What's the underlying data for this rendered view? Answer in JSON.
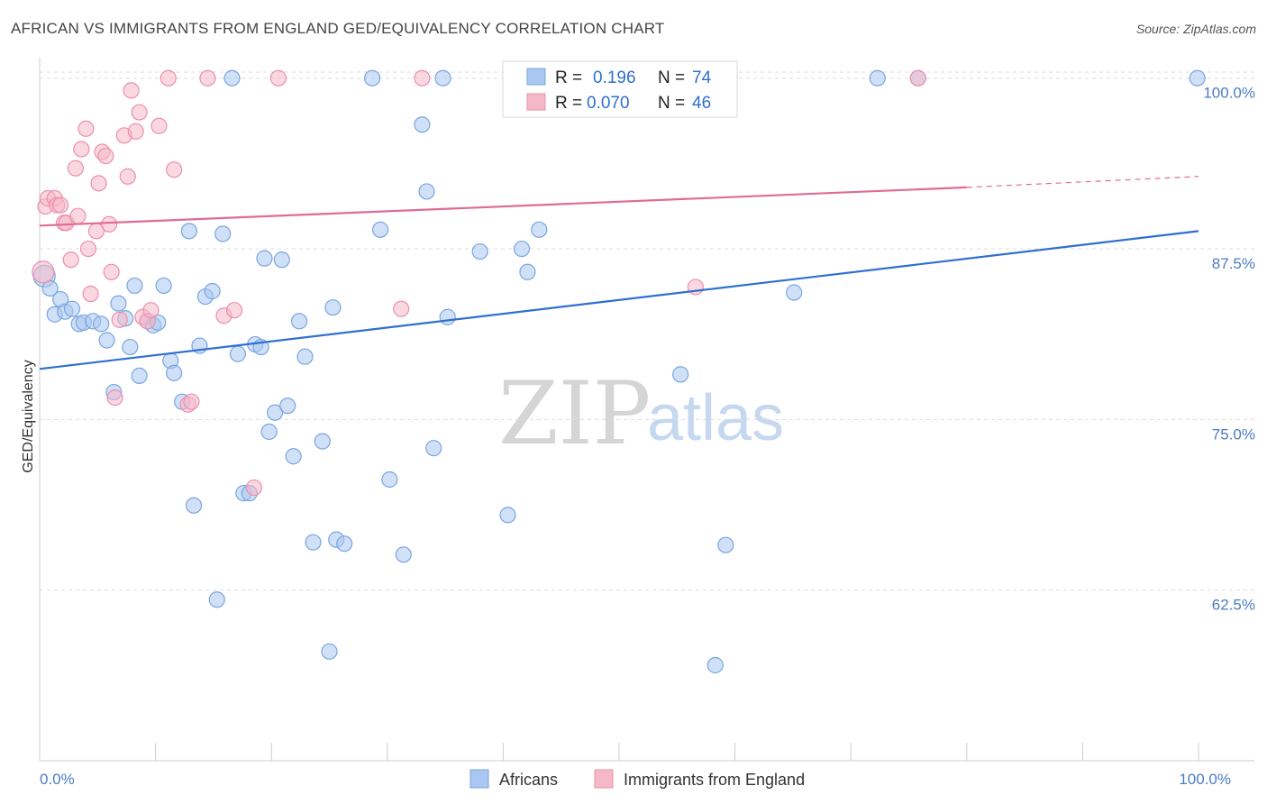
{
  "title": "AFRICAN VS IMMIGRANTS FROM ENGLAND GED/EQUIVALENCY CORRELATION CHART",
  "source": "Source: ZipAtlas.com",
  "watermark": {
    "zip": "ZIP",
    "atlas": "atlas"
  },
  "legend": {
    "rows": [
      {
        "r_label": "R =",
        "r_value": "0.196",
        "n_label": "N =",
        "n_value": "74",
        "color": "#a9c7f0"
      },
      {
        "r_label": "R =",
        "r_value": "0.070",
        "n_label": "N =",
        "n_value": "46",
        "color": "#f5b8c9"
      }
    ]
  },
  "bottom_legend": [
    {
      "label": "Africans",
      "color": "#a9c7f0"
    },
    {
      "label": "Immigrants from England",
      "color": "#f5b8c9"
    }
  ],
  "chart_data": {
    "type": "scatter",
    "title": "AFRICAN VS IMMIGRANTS FROM ENGLAND GED/EQUIVALENCY CORRELATION CHART",
    "xlabel": "",
    "ylabel": "GED/Equivalency",
    "xlim": [
      0,
      100
    ],
    "ylim": [
      50,
      101.5
    ],
    "x_tick_labels": [
      {
        "value": 0,
        "label": "0.0%"
      },
      {
        "value": 100,
        "label": "100.0%"
      }
    ],
    "y_tick_labels": [
      {
        "value": 100,
        "label": "100.0%"
      },
      {
        "value": 87.5,
        "label": "87.5%"
      },
      {
        "value": 75,
        "label": "75.0%"
      },
      {
        "value": 62.5,
        "label": "62.5%"
      }
    ],
    "series": [
      {
        "name": "Africans",
        "color": "#a9c7f0",
        "stroke": "#7aa6e0",
        "trend": {
          "x": [
            0,
            100
          ],
          "y": [
            78.7,
            88.8
          ],
          "color": "#2f6fd0"
        },
        "points": [
          [
            0.4,
            85.5
          ],
          [
            0.9,
            84.6
          ],
          [
            1.3,
            82.7
          ],
          [
            1.8,
            83.8
          ],
          [
            2.2,
            82.9
          ],
          [
            2.8,
            83.1
          ],
          [
            3.4,
            82.0
          ],
          [
            3.8,
            82.1
          ],
          [
            4.6,
            82.2
          ],
          [
            5.3,
            82.0
          ],
          [
            5.8,
            80.8
          ],
          [
            6.4,
            77.0
          ],
          [
            6.8,
            83.5
          ],
          [
            7.4,
            82.4
          ],
          [
            7.8,
            80.3
          ],
          [
            8.2,
            84.8
          ],
          [
            8.6,
            78.2
          ],
          [
            9.3,
            82.2
          ],
          [
            9.8,
            81.9
          ],
          [
            10.2,
            82.1
          ],
          [
            10.7,
            84.8
          ],
          [
            11.3,
            79.3
          ],
          [
            11.6,
            78.4
          ],
          [
            12.3,
            76.3
          ],
          [
            12.9,
            88.8
          ],
          [
            13.3,
            68.7
          ],
          [
            13.8,
            80.4
          ],
          [
            14.3,
            84.0
          ],
          [
            14.9,
            84.4
          ],
          [
            15.3,
            61.8
          ],
          [
            15.8,
            88.6
          ],
          [
            16.6,
            100.0
          ],
          [
            17.1,
            79.8
          ],
          [
            17.6,
            69.6
          ],
          [
            18.1,
            69.6
          ],
          [
            18.6,
            80.5
          ],
          [
            19.1,
            80.3
          ],
          [
            19.4,
            86.8
          ],
          [
            19.8,
            74.1
          ],
          [
            20.3,
            75.5
          ],
          [
            20.9,
            86.7
          ],
          [
            21.4,
            76.0
          ],
          [
            21.9,
            72.3
          ],
          [
            22.4,
            82.2
          ],
          [
            22.9,
            79.6
          ],
          [
            23.6,
            66.0
          ],
          [
            24.4,
            73.4
          ],
          [
            25.0,
            58.0
          ],
          [
            25.3,
            83.2
          ],
          [
            25.6,
            66.2
          ],
          [
            26.3,
            65.9
          ],
          [
            28.7,
            100.0
          ],
          [
            29.4,
            88.9
          ],
          [
            30.2,
            70.6
          ],
          [
            31.4,
            65.1
          ],
          [
            33.0,
            96.6
          ],
          [
            33.4,
            91.7
          ],
          [
            34.0,
            72.9
          ],
          [
            34.8,
            100.0
          ],
          [
            35.2,
            82.5
          ],
          [
            38.0,
            87.3
          ],
          [
            40.4,
            68.0
          ],
          [
            41.6,
            87.5
          ],
          [
            42.1,
            85.8
          ],
          [
            43.1,
            88.9
          ],
          [
            52.3,
            100.0
          ],
          [
            55.3,
            78.3
          ],
          [
            58.3,
            57.0
          ],
          [
            59.2,
            65.8
          ],
          [
            65.1,
            84.3
          ],
          [
            72.3,
            100.0
          ],
          [
            75.8,
            100.0
          ],
          [
            99.9,
            100.0
          ]
        ]
      },
      {
        "name": "Immigrants from England",
        "color": "#f5b8c9",
        "stroke": "#ec8fab",
        "trend": {
          "x": [
            0,
            80,
            100
          ],
          "y": [
            89.2,
            92.0,
            92.8
          ],
          "color": "#e06b93"
        },
        "points": [
          [
            0.3,
            85.8
          ],
          [
            0.5,
            90.6
          ],
          [
            0.7,
            91.2
          ],
          [
            1.3,
            91.2
          ],
          [
            1.5,
            90.7
          ],
          [
            1.8,
            90.7
          ],
          [
            2.1,
            89.4
          ],
          [
            2.3,
            89.4
          ],
          [
            2.7,
            86.7
          ],
          [
            3.1,
            93.4
          ],
          [
            3.3,
            89.9
          ],
          [
            3.6,
            94.8
          ],
          [
            4.0,
            96.3
          ],
          [
            4.2,
            87.5
          ],
          [
            4.4,
            84.2
          ],
          [
            4.9,
            88.8
          ],
          [
            5.1,
            92.3
          ],
          [
            5.4,
            94.6
          ],
          [
            5.7,
            94.3
          ],
          [
            6.0,
            89.3
          ],
          [
            6.2,
            85.8
          ],
          [
            6.5,
            76.6
          ],
          [
            6.9,
            82.3
          ],
          [
            7.3,
            95.8
          ],
          [
            7.6,
            92.8
          ],
          [
            7.9,
            99.1
          ],
          [
            8.3,
            96.1
          ],
          [
            8.6,
            97.5
          ],
          [
            8.9,
            82.5
          ],
          [
            9.3,
            82.2
          ],
          [
            9.6,
            83.0
          ],
          [
            10.3,
            96.5
          ],
          [
            11.1,
            100.0
          ],
          [
            11.6,
            93.3
          ],
          [
            12.8,
            76.1
          ],
          [
            13.1,
            76.3
          ],
          [
            14.5,
            100.0
          ],
          [
            15.9,
            82.6
          ],
          [
            16.8,
            83.0
          ],
          [
            18.5,
            70.0
          ],
          [
            20.6,
            100.0
          ],
          [
            31.2,
            83.1
          ],
          [
            33.0,
            100.0
          ],
          [
            56.6,
            84.7
          ],
          [
            75.8,
            100.0
          ]
        ]
      }
    ],
    "grid": true,
    "legend_position": "top-center"
  }
}
